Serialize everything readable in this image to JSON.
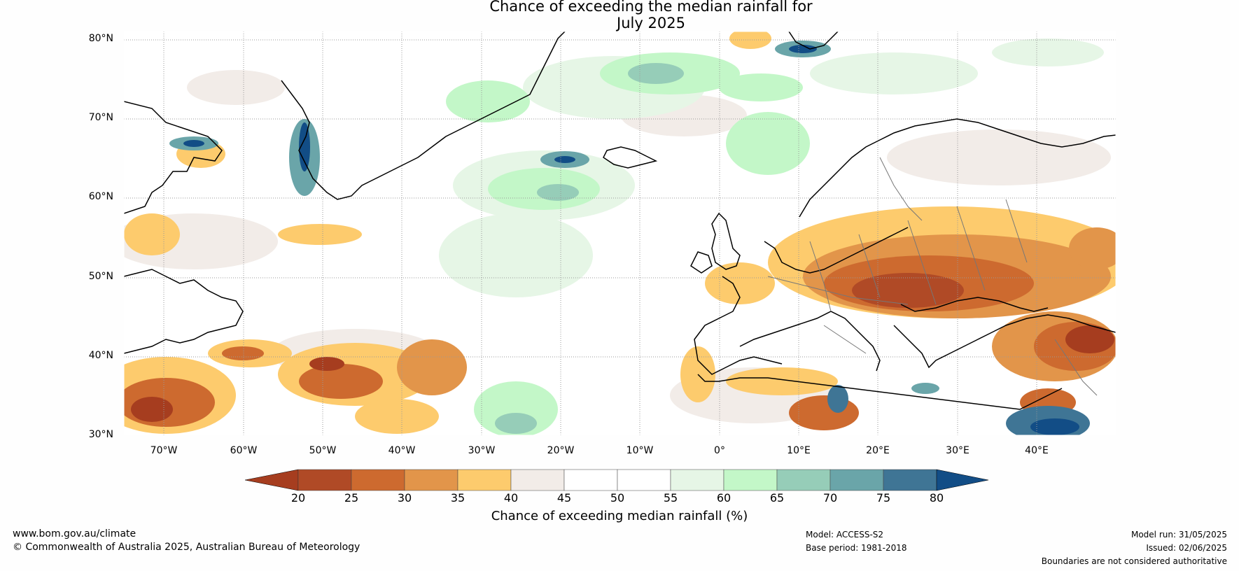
{
  "title": {
    "line1": "Chance of exceeding the median rainfall for",
    "line2": "July 2025"
  },
  "map": {
    "lat_labels": [
      "80°N",
      "70°N",
      "60°N",
      "50°N",
      "40°N",
      "30°N"
    ],
    "lon_labels": [
      "70°W",
      "60°W",
      "50°W",
      "40°W",
      "30°W",
      "20°W",
      "10°W",
      "0°",
      "10°E",
      "20°E",
      "30°E",
      "40°E"
    ]
  },
  "colorbar": {
    "ticks": [
      "20",
      "25",
      "30",
      "35",
      "40",
      "45",
      "50",
      "55",
      "60",
      "65",
      "70",
      "75",
      "80"
    ],
    "colors": [
      "#a63d1f",
      "#b04a26",
      "#cd6a2f",
      "#e2954a",
      "#fdcb6d",
      "#f2ece8",
      "#ffffff",
      "#ffffff",
      "#e6f6e6",
      "#c3f7c8",
      "#96cdb8",
      "#6aa5a9",
      "#3f7595",
      "#124d86"
    ],
    "label": "Chance of exceeding median rainfall (%)"
  },
  "footer": {
    "url": "www.bom.gov.au/climate",
    "copyright": "© Commonwealth of Australia 2025, Australian Bureau of Meteorology",
    "model": "Model: ACCESS-S2",
    "base_period": "Base period: 1981-2018",
    "model_run": "Model run: 31/05/2025",
    "issued": "Issued: 02/06/2025",
    "disclaimer": "Boundaries are not considered authoritative"
  }
}
